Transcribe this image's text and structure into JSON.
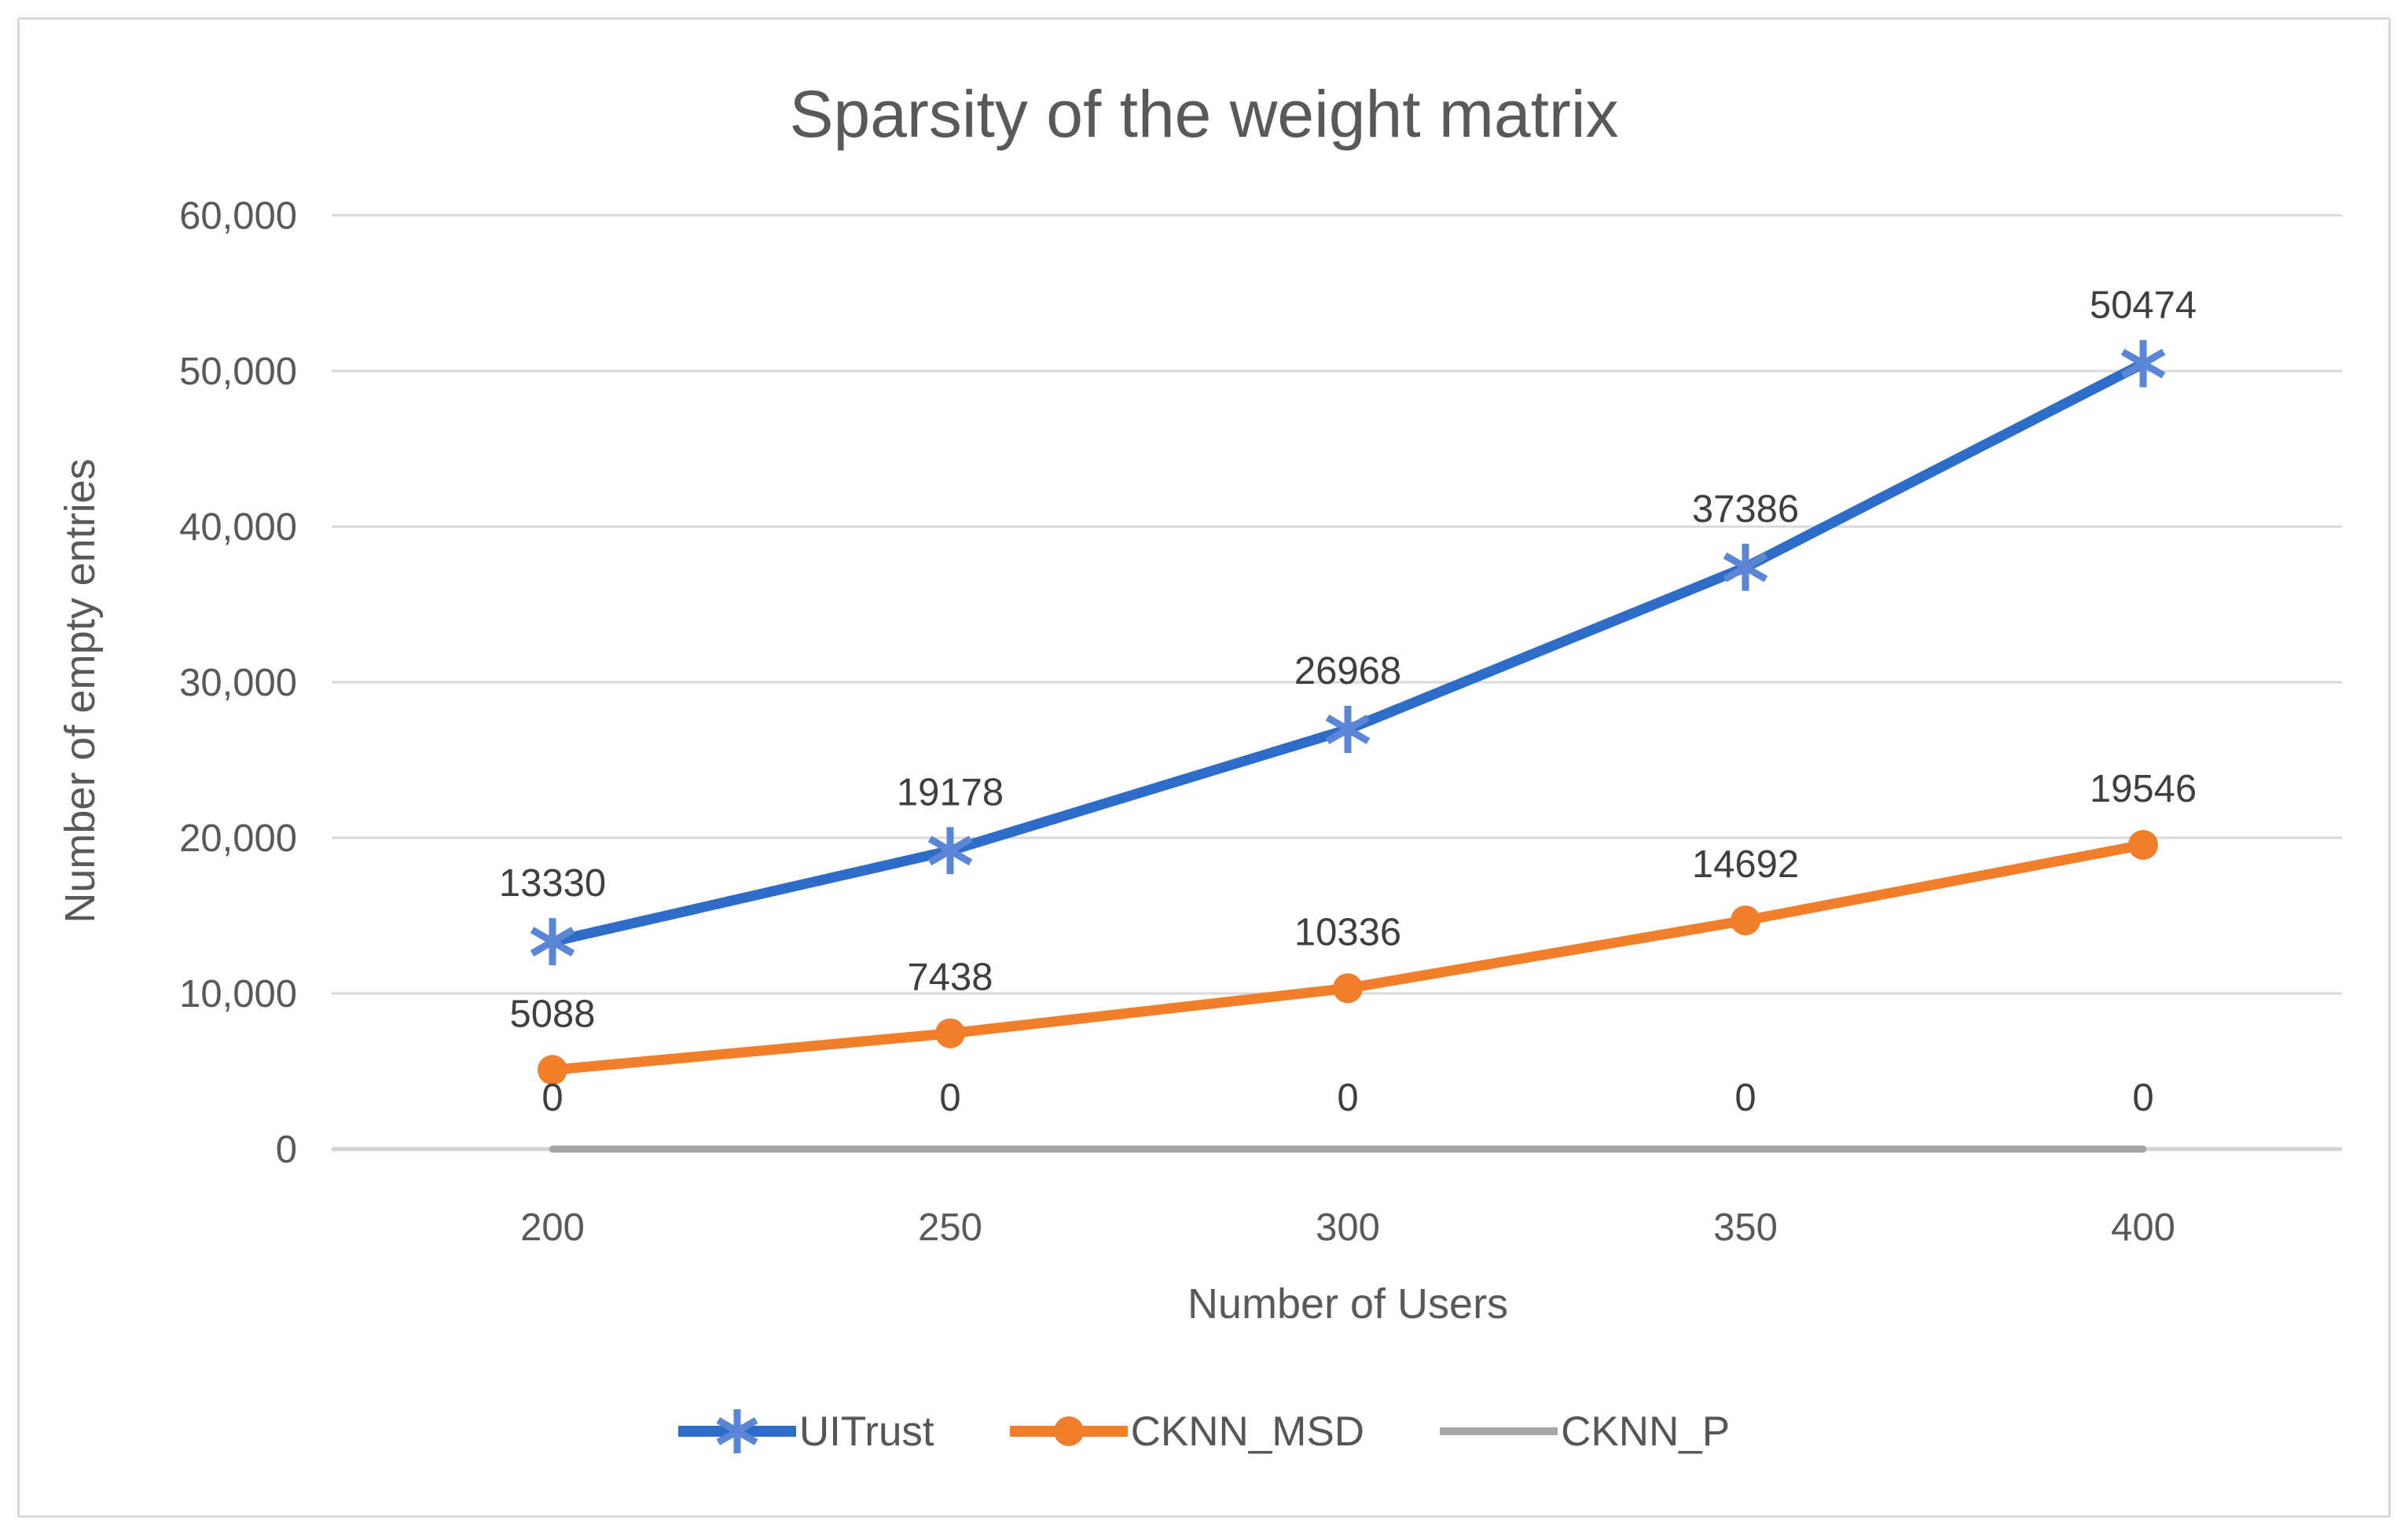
{
  "chart_data": {
    "type": "line",
    "title": "Sparsity of the weight matrix",
    "xlabel": "Number of Users",
    "ylabel": "Number of empty entries",
    "categories": [
      "200",
      "250",
      "300",
      "350",
      "400"
    ],
    "series": [
      {
        "name": "UITrust",
        "values": [
          13330,
          19178,
          26968,
          37386,
          50474
        ],
        "color": "#2d6cc8",
        "marker": "star6",
        "marker_color": "#5b86d5",
        "line_width": 13,
        "label_offset": 75
      },
      {
        "name": "CKNN_MSD",
        "values": [
          5088,
          7438,
          10336,
          14692,
          19546
        ],
        "color": "#f07e2b",
        "marker": "circle",
        "marker_color": "#f07e2b",
        "line_width": 13,
        "label_offset": 72
      },
      {
        "name": "CKNN_P",
        "values": [
          0,
          0,
          0,
          0,
          0
        ],
        "color": "#a6a6a6",
        "marker": "none",
        "marker_color": "#a6a6a6",
        "line_width": 9,
        "label_offset": 66
      }
    ],
    "ylim": [
      0,
      60000
    ],
    "ytick_step": 10000,
    "ytick_labels": [
      "0",
      "10,000",
      "20,000",
      "30,000",
      "40,000",
      "50,000",
      "60,000"
    ],
    "grid": true,
    "legend_position": "bottom",
    "data_labels": true,
    "colors": {
      "grid": "#d9d9d9",
      "axis": "#d2d2d2",
      "tick_text": "#595959",
      "data_label_text": "#3f3f3f",
      "title_text": "#595959",
      "frame_border": "#d8d8d8"
    }
  }
}
